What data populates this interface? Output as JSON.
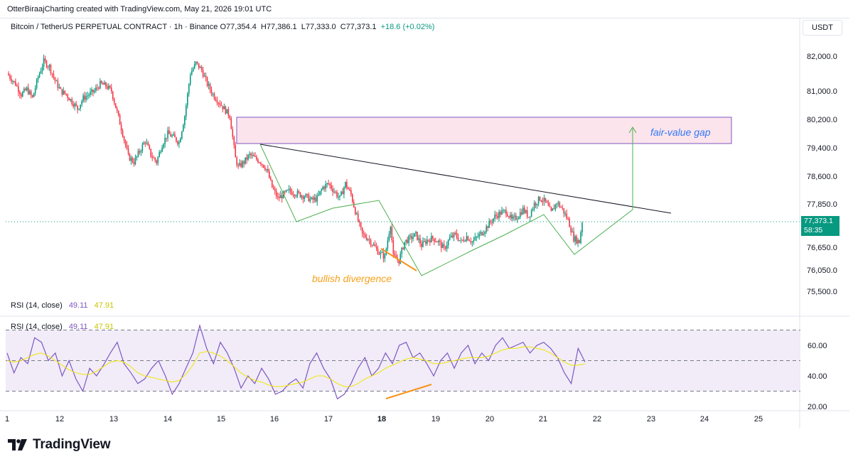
{
  "header": {
    "credit": "OtterBiraajCharting created with TradingView.com, May 21, 2026 19:01 UTC",
    "symbol": "Bitcoin / TetherUS PERPETUAL CONTRACT · 1h · Binance",
    "open": "O77,354.4",
    "high": "H77,386.1",
    "low": "L77,333.0",
    "close": "C77,373.1",
    "change": "+18.6 (+0.02%)",
    "currency": "USDT"
  },
  "price_tag": {
    "price": "77,373.1",
    "countdown": "58:35"
  },
  "rsi_legend": {
    "first": {
      "label": "RSI (14, close)",
      "value": "49.11",
      "ma": "47.91"
    },
    "second": {
      "label": "RSI (14, close)",
      "value": "49.11",
      "ma": "47.91"
    }
  },
  "annotations": {
    "fvg": "fair-value gap",
    "divergence": "bullish divergence"
  },
  "logo": {
    "text": "TradingView"
  },
  "colors": {
    "up": "#089981",
    "down": "#f23645",
    "rsi": "#7e57c2",
    "rsi_ma": "#f2e600",
    "fvg_fill": "#fce4ec",
    "fvg_border": "#7e57c2",
    "pattern": "#4caf50",
    "trend": "#131722",
    "divergence": "#f7931a"
  },
  "chart_data": [
    {
      "type": "candlestick",
      "title": "Bitcoin / TetherUS PERPETUAL CONTRACT · 1h · Binance",
      "x_ticks": [
        "1",
        "12",
        "13",
        "14",
        "15",
        "16",
        "17",
        "18",
        "19",
        "20",
        "21",
        "22",
        "23",
        "24",
        "25"
      ],
      "y_ticks": [
        "82,000.0",
        "81,000.0",
        "80,200.0",
        "79,400.0",
        "78,600.0",
        "77,850.0",
        "76,650.0",
        "76,050.0",
        "75,500.0"
      ],
      "ylim": [
        75400,
        82300
      ],
      "last_price": 77373.1,
      "path_anchors": [
        [
          0,
          81500
        ],
        [
          6,
          81200
        ],
        [
          10,
          80900
        ],
        [
          14,
          81050
        ],
        [
          18,
          80800
        ],
        [
          22,
          81400
        ],
        [
          26,
          81850
        ],
        [
          30,
          81700
        ],
        [
          34,
          81300
        ],
        [
          38,
          81000
        ],
        [
          42,
          80900
        ],
        [
          46,
          80700
        ],
        [
          50,
          80500
        ],
        [
          54,
          80800
        ],
        [
          58,
          80900
        ],
        [
          62,
          81000
        ],
        [
          66,
          81200
        ],
        [
          70,
          81150
        ],
        [
          74,
          81000
        ],
        [
          78,
          80400
        ],
        [
          82,
          79800
        ],
        [
          86,
          79150
        ],
        [
          90,
          79000
        ],
        [
          94,
          79300
        ],
        [
          98,
          79600
        ],
        [
          102,
          79200
        ],
        [
          106,
          79000
        ],
        [
          110,
          79500
        ],
        [
          114,
          79800
        ],
        [
          118,
          79700
        ],
        [
          122,
          79550
        ],
        [
          126,
          80300
        ],
        [
          130,
          81500
        ],
        [
          134,
          81800
        ],
        [
          138,
          81600
        ],
        [
          142,
          81200
        ],
        [
          146,
          80900
        ],
        [
          150,
          80700
        ],
        [
          154,
          80500
        ],
        [
          158,
          80300
        ],
        [
          162,
          79100
        ],
        [
          164,
          78850
        ],
        [
          168,
          79000
        ],
        [
          172,
          79200
        ],
        [
          176,
          79100
        ],
        [
          180,
          79000
        ],
        [
          184,
          78800
        ],
        [
          188,
          78300
        ],
        [
          192,
          78000
        ],
        [
          196,
          78100
        ],
        [
          200,
          78200
        ],
        [
          204,
          78150
        ],
        [
          208,
          78100
        ],
        [
          212,
          78050
        ],
        [
          216,
          77950
        ],
        [
          220,
          78000
        ],
        [
          224,
          78300
        ],
        [
          228,
          78400
        ],
        [
          232,
          78200
        ],
        [
          236,
          78000
        ],
        [
          240,
          78400
        ],
        [
          244,
          78100
        ],
        [
          248,
          77500
        ],
        [
          252,
          77000
        ],
        [
          256,
          76900
        ],
        [
          260,
          76700
        ],
        [
          264,
          76500
        ],
        [
          268,
          76400
        ],
        [
          272,
          77300
        ],
        [
          274,
          76400
        ],
        [
          278,
          76300
        ],
        [
          282,
          76800
        ],
        [
          286,
          76900
        ],
        [
          290,
          77000
        ],
        [
          294,
          76700
        ],
        [
          298,
          76850
        ],
        [
          302,
          76900
        ],
        [
          306,
          76800
        ],
        [
          310,
          76600
        ],
        [
          314,
          76900
        ],
        [
          318,
          77000
        ],
        [
          322,
          76800
        ],
        [
          326,
          76950
        ],
        [
          330,
          76800
        ],
        [
          334,
          76950
        ],
        [
          338,
          77100
        ],
        [
          342,
          77300
        ],
        [
          346,
          77500
        ],
        [
          350,
          77600
        ],
        [
          354,
          77650
        ],
        [
          358,
          77400
        ],
        [
          362,
          77500
        ],
        [
          366,
          77700
        ],
        [
          370,
          77500
        ],
        [
          374,
          77850
        ],
        [
          378,
          78000
        ],
        [
          382,
          77900
        ],
        [
          386,
          77600
        ],
        [
          390,
          77900
        ],
        [
          394,
          77700
        ],
        [
          398,
          77400
        ],
        [
          402,
          76900
        ],
        [
          406,
          76800
        ],
        [
          408,
          77373.1
        ]
      ]
    },
    {
      "type": "line",
      "title": "RSI (14, close)",
      "y_ticks": [
        "60.00",
        "40.00",
        "20.00"
      ],
      "ylim": [
        18,
        73
      ],
      "bands": [
        70,
        50,
        30
      ],
      "series": [
        {
          "name": "RSI",
          "values": [
            55,
            42,
            52,
            48,
            65,
            62,
            50,
            55,
            40,
            50,
            38,
            30,
            45,
            40,
            47,
            55,
            62,
            48,
            42,
            35,
            38,
            45,
            50,
            40,
            28,
            35,
            45,
            55,
            73,
            58,
            48,
            62,
            55,
            45,
            32,
            40,
            35,
            45,
            38,
            28,
            30,
            35,
            38,
            32,
            48,
            55,
            45,
            38,
            25,
            28,
            35,
            45,
            52,
            40,
            45,
            55,
            48,
            60,
            62,
            52,
            55,
            48,
            40,
            50,
            55,
            45,
            55,
            60,
            48,
            55,
            50,
            60,
            65,
            58,
            60,
            62,
            55,
            60,
            62,
            58,
            52,
            42,
            35,
            58,
            49.11
          ]
        },
        {
          "name": "RSI-based MA",
          "values": [
            50,
            49,
            50,
            52,
            54,
            55,
            53,
            50,
            47,
            44,
            42,
            41,
            41,
            43,
            46,
            49,
            50,
            49,
            46,
            42,
            40,
            39,
            38,
            37,
            36,
            37,
            41,
            47,
            55,
            56,
            55,
            53,
            50,
            46,
            42,
            39,
            37,
            36,
            34,
            33,
            33,
            34,
            35,
            36,
            38,
            40,
            40,
            38,
            35,
            33,
            33,
            35,
            38,
            40,
            42,
            45,
            47,
            49,
            51,
            52,
            51,
            50,
            48,
            48,
            49,
            50,
            51,
            52,
            52,
            52,
            53,
            55,
            57,
            58,
            58,
            59,
            59,
            58,
            57,
            55,
            52,
            49,
            47,
            47,
            47.91
          ]
        }
      ]
    }
  ]
}
